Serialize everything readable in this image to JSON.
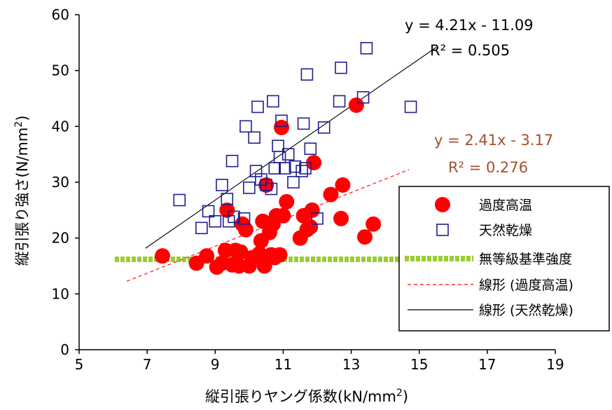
{
  "chart_data": {
    "type": "scatter",
    "xlabel": "縦引張りヤング係数(kN/mm",
    "xlabel_sup": "2",
    "xlabel_close": ")",
    "ylabel": "縦引張り強さ(N/mm",
    "ylabel_sup": "2",
    "ylabel_close": ")",
    "xlim": [
      5,
      19
    ],
    "ylim": [
      0,
      60
    ],
    "xticks": [
      "5",
      "7",
      "9",
      "11",
      "13",
      "15",
      "17",
      "19"
    ],
    "yticks": [
      "0",
      "10",
      "20",
      "30",
      "40",
      "50",
      "60"
    ],
    "xtick_values": [
      5,
      7,
      9,
      11,
      13,
      15,
      17,
      19
    ],
    "ytick_values": [
      0,
      10,
      20,
      30,
      40,
      50,
      60
    ],
    "grid": false,
    "legend_position": "right",
    "series": [
      {
        "name": "過度高温",
        "marker": "filled-circle",
        "color": "#ff0000",
        "points": [
          [
            7.45,
            16.8
          ],
          [
            8.45,
            15.5
          ],
          [
            8.75,
            16.8
          ],
          [
            9.05,
            14.8
          ],
          [
            9.2,
            15.5
          ],
          [
            9.3,
            17.8
          ],
          [
            9.35,
            25.0
          ],
          [
            9.5,
            15.2
          ],
          [
            9.6,
            17.8
          ],
          [
            9.7,
            15.0
          ],
          [
            9.75,
            17.5
          ],
          [
            9.8,
            22.5
          ],
          [
            9.9,
            21.5
          ],
          [
            10.0,
            15.0
          ],
          [
            10.1,
            16.5
          ],
          [
            10.3,
            17.2
          ],
          [
            10.35,
            19.5
          ],
          [
            10.4,
            23.0
          ],
          [
            10.45,
            15.0
          ],
          [
            10.5,
            29.5
          ],
          [
            10.6,
            21.0
          ],
          [
            10.65,
            17.0
          ],
          [
            10.7,
            22.5
          ],
          [
            10.75,
            16.5
          ],
          [
            10.8,
            24.0
          ],
          [
            10.9,
            17.0
          ],
          [
            10.95,
            39.8
          ],
          [
            11.0,
            24.0
          ],
          [
            11.1,
            26.5
          ],
          [
            11.5,
            20.0
          ],
          [
            11.6,
            24.0
          ],
          [
            11.7,
            21.5
          ],
          [
            11.8,
            22.0
          ],
          [
            11.85,
            25.0
          ],
          [
            11.9,
            33.5
          ],
          [
            12.4,
            27.8
          ],
          [
            12.7,
            23.5
          ],
          [
            12.75,
            29.5
          ],
          [
            13.15,
            43.8
          ],
          [
            13.4,
            20.2
          ],
          [
            13.65,
            22.5
          ]
        ]
      },
      {
        "name": "天然乾燥",
        "marker": "open-square",
        "color": "#1f1f8f",
        "points": [
          [
            7.95,
            26.8
          ],
          [
            8.6,
            21.8
          ],
          [
            8.8,
            24.8
          ],
          [
            9.0,
            23.0
          ],
          [
            9.2,
            29.5
          ],
          [
            9.35,
            27.0
          ],
          [
            9.4,
            23.0
          ],
          [
            9.5,
            33.8
          ],
          [
            9.55,
            23.8
          ],
          [
            9.85,
            23.5
          ],
          [
            9.9,
            40.0
          ],
          [
            10.0,
            29.0
          ],
          [
            10.15,
            38.0
          ],
          [
            10.2,
            32.0
          ],
          [
            10.25,
            43.5
          ],
          [
            10.35,
            30.5
          ],
          [
            10.5,
            29.5
          ],
          [
            10.65,
            28.8
          ],
          [
            10.7,
            44.5
          ],
          [
            10.75,
            32.5
          ],
          [
            10.85,
            36.5
          ],
          [
            10.9,
            34.5
          ],
          [
            10.95,
            41.0
          ],
          [
            11.05,
            32.5
          ],
          [
            11.15,
            35.0
          ],
          [
            11.3,
            30.0
          ],
          [
            11.35,
            32.8
          ],
          [
            11.55,
            32.0
          ],
          [
            11.6,
            40.5
          ],
          [
            11.65,
            32.5
          ],
          [
            11.7,
            49.3
          ],
          [
            11.8,
            36.0
          ],
          [
            12.0,
            23.5
          ],
          [
            12.2,
            39.8
          ],
          [
            12.65,
            44.5
          ],
          [
            12.7,
            50.5
          ],
          [
            13.35,
            45.2
          ],
          [
            13.45,
            54.0
          ],
          [
            14.75,
            43.5
          ]
        ]
      }
    ],
    "reference_line": {
      "name": "無等級基準強度",
      "y": 16.2,
      "x_start": 6.05,
      "x_end": 16.2,
      "color": "#9acd32",
      "style": "thick-dotted"
    },
    "trendlines": [
      {
        "name": "線形 (過度高温)",
        "slope": 2.41,
        "intercept": -3.17,
        "x_range": [
          6.4,
          14.7
        ],
        "color": "#ff0000",
        "style": "dashed",
        "equation": "y = 2.41x - 3.17",
        "r2": "R² = 0.276",
        "label_color": "#a0522d"
      },
      {
        "name": "線形 (天然乾燥)",
        "slope": 4.21,
        "intercept": -11.09,
        "x_range": [
          6.95,
          15.5
        ],
        "color": "#000000",
        "style": "solid",
        "equation": "y = 4.21x - 11.09",
        "r2": "R² = 0.505",
        "label_color": "#000000"
      }
    ]
  }
}
